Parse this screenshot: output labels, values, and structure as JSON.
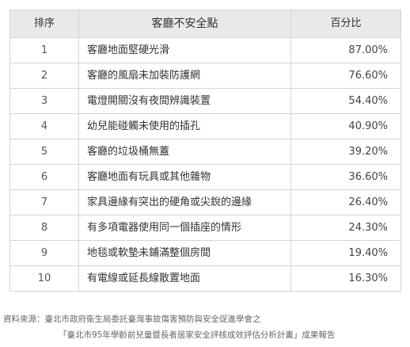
{
  "table": {
    "headers": {
      "rank": "排序",
      "item": "客廳不安全點",
      "percent": "百分比"
    },
    "rows": [
      {
        "rank": "1",
        "item": "客廳地面堅硬光滑",
        "percent": "87.00%"
      },
      {
        "rank": "2",
        "item": "客廳的風扇未加裝防護網",
        "percent": "76.60%"
      },
      {
        "rank": "3",
        "item": "電燈開關沒有夜間辨識裝置",
        "percent": "54.40%"
      },
      {
        "rank": "4",
        "item": "幼兒能碰觸未使用的插孔",
        "percent": "40.90%"
      },
      {
        "rank": "5",
        "item": "客廳的垃圾桶無蓋",
        "percent": "39.20%"
      },
      {
        "rank": "6",
        "item": "客廳地面有玩具或其他雜物",
        "percent": "36.60%"
      },
      {
        "rank": "7",
        "item": "家具邊緣有突出的硬角或尖銳的邊緣",
        "percent": "26.40%"
      },
      {
        "rank": "8",
        "item": "有多項電器使用同一個插座的情形",
        "percent": "24.30%"
      },
      {
        "rank": "9",
        "item": "地毯或軟墊未鋪滿整個房間",
        "percent": "19.40%"
      },
      {
        "rank": "10",
        "item": "有電線或延長線散置地面",
        "percent": "16.30%"
      }
    ]
  },
  "source": {
    "line1": "資料來源：臺北市政府衛生局委託臺灣事故傷害預防與安全促進學會之",
    "line2": "「臺北市95年學齡前兒童暨長者居家安全評核成效評估分析計畫」成果報告"
  }
}
